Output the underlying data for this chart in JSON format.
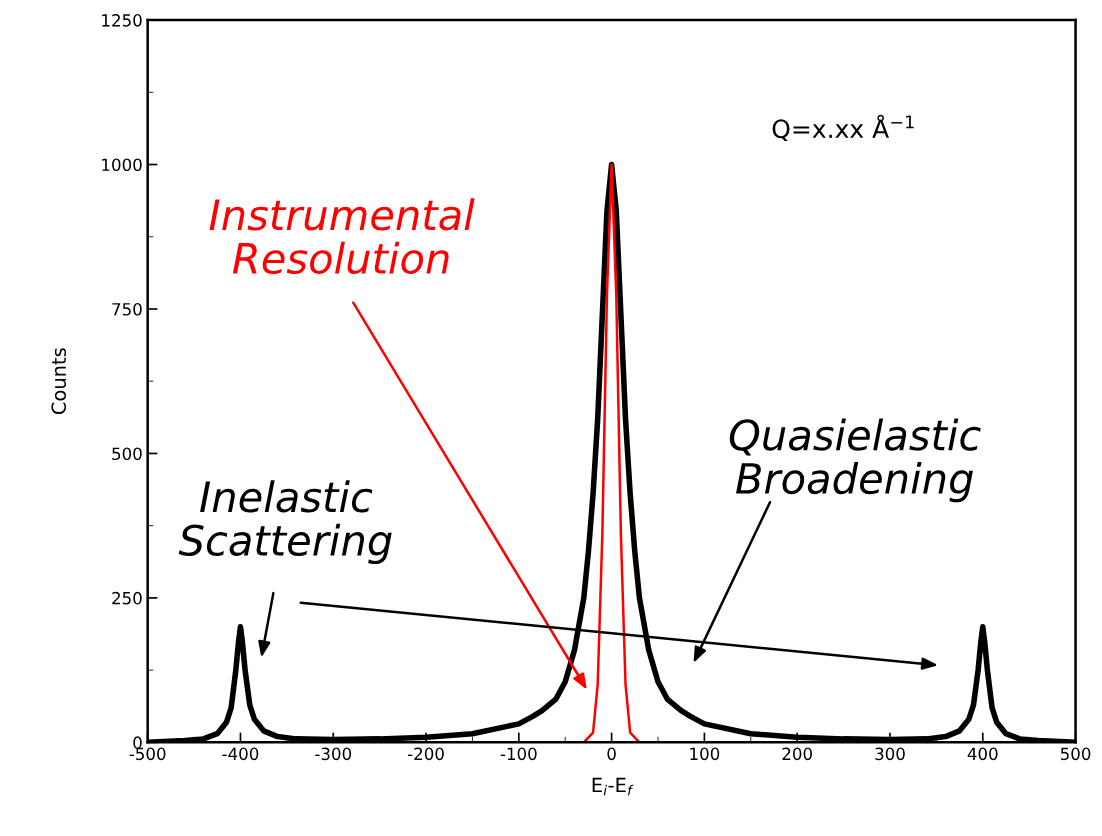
{
  "chart_data": {
    "type": "line",
    "xlabel": "E$_{i}$-E$_{f}$",
    "ylabel": "Counts",
    "xlim": [
      -500,
      500
    ],
    "xticks": [
      -500,
      -400,
      -300,
      -200,
      -100,
      0,
      100,
      200,
      300,
      400,
      500
    ],
    "ylim": [
      0,
      1250
    ],
    "yticks": [
      0,
      250,
      500,
      750,
      1000,
      1250
    ],
    "grid": false,
    "legend": false,
    "marker": "none",
    "line_style": "solid",
    "series": [
      {
        "color": "#000000",
        "x": [
          -500,
          -460,
          -440,
          -425,
          -415,
          -410,
          -405,
          -402,
          -400,
          -398,
          -395,
          -390,
          -385,
          -375,
          -360,
          -340,
          -300,
          -250,
          -200,
          -150,
          -100,
          -85,
          -75,
          -60,
          -50,
          -40,
          -30,
          -25,
          -20,
          -15,
          -10,
          -5,
          0,
          5,
          10,
          15,
          20,
          25,
          30,
          40,
          50,
          60,
          75,
          85,
          100,
          150,
          200,
          250,
          300,
          340,
          360,
          375,
          385,
          390,
          395,
          398,
          400,
          402,
          405,
          410,
          415,
          425,
          440,
          460,
          500
        ],
        "values": [
          0,
          3,
          6,
          15,
          35,
          60,
          125,
          175,
          200,
          175,
          125,
          65,
          40,
          20,
          10,
          6,
          5,
          6,
          9,
          15,
          32,
          45,
          55,
          75,
          105,
          160,
          250,
          330,
          430,
          560,
          740,
          920,
          1000,
          920,
          740,
          560,
          430,
          330,
          250,
          160,
          105,
          75,
          55,
          45,
          32,
          15,
          9,
          6,
          5,
          6,
          10,
          20,
          40,
          65,
          125,
          175,
          200,
          175,
          125,
          60,
          35,
          15,
          6,
          3,
          0
        ]
      },
      {
        "color": "#ff0000",
        "x": [
          -320,
          -100,
          -30,
          -20,
          -15,
          -10,
          -5,
          0,
          5,
          10,
          15,
          20,
          30,
          100,
          320
        ],
        "values": [
          0,
          0,
          0,
          17,
          100,
          360,
          775,
          1000,
          775,
          360,
          100,
          17,
          0,
          0,
          0
        ]
      }
    ],
    "annotations": [
      "Instrumental\nResolution",
      "Inelastic\nScattering",
      "Quasielastic\nBroadening",
      "Q=x.xx Å$^{−1}$"
    ]
  }
}
